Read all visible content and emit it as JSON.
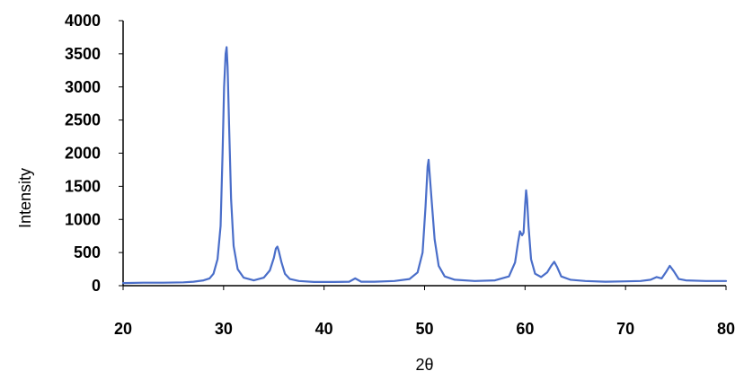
{
  "chart_data": {
    "type": "line",
    "title": "",
    "xlabel": "2θ",
    "ylabel": "Intensity",
    "xlim": [
      20,
      80
    ],
    "ylim": [
      0,
      4000
    ],
    "x_ticks": [
      20,
      30,
      40,
      50,
      60,
      70,
      80
    ],
    "y_ticks": [
      0,
      500,
      1000,
      1500,
      2000,
      2500,
      3000,
      3500,
      4000
    ],
    "grid": false,
    "legend": "none",
    "line_color": "#4a6ec9",
    "series": [
      {
        "x": [
          20,
          22,
          24,
          26,
          27,
          28,
          28.6,
          29,
          29.4,
          29.7,
          29.9,
          30.05,
          30.2,
          30.3,
          30.4,
          30.55,
          30.75,
          31,
          31.4,
          32,
          33,
          34,
          34.6,
          35,
          35.2,
          35.35,
          35.5,
          35.75,
          36.1,
          36.6,
          37.5,
          39,
          41,
          42.5,
          43.1,
          43.7,
          45,
          47,
          48.5,
          49.3,
          49.8,
          50.1,
          50.3,
          50.4,
          50.5,
          50.7,
          51,
          51.4,
          52,
          53,
          55,
          57,
          58.4,
          59,
          59.3,
          59.5,
          59.7,
          59.85,
          60,
          60.1,
          60.2,
          60.35,
          60.6,
          61,
          61.6,
          62.2,
          62.6,
          62.9,
          63.2,
          63.6,
          64.5,
          66,
          68,
          70,
          71.5,
          72.5,
          73.1,
          73.6,
          74,
          74.4,
          74.8,
          75.3,
          76,
          78,
          80
        ],
        "y": [
          40,
          45,
          45,
          50,
          60,
          80,
          110,
          180,
          400,
          900,
          2000,
          3000,
          3500,
          3600,
          3300,
          2400,
          1300,
          600,
          250,
          120,
          80,
          120,
          230,
          420,
          560,
          590,
          520,
          360,
          180,
          100,
          70,
          55,
          55,
          60,
          110,
          60,
          60,
          70,
          100,
          200,
          500,
          1200,
          1800,
          1900,
          1700,
          1300,
          700,
          300,
          140,
          90,
          70,
          80,
          140,
          350,
          650,
          820,
          760,
          800,
          1200,
          1440,
          1300,
          900,
          400,
          180,
          130,
          200,
          300,
          360,
          280,
          140,
          90,
          70,
          60,
          65,
          70,
          90,
          130,
          110,
          200,
          300,
          220,
          100,
          80,
          70,
          70
        ]
      }
    ]
  }
}
